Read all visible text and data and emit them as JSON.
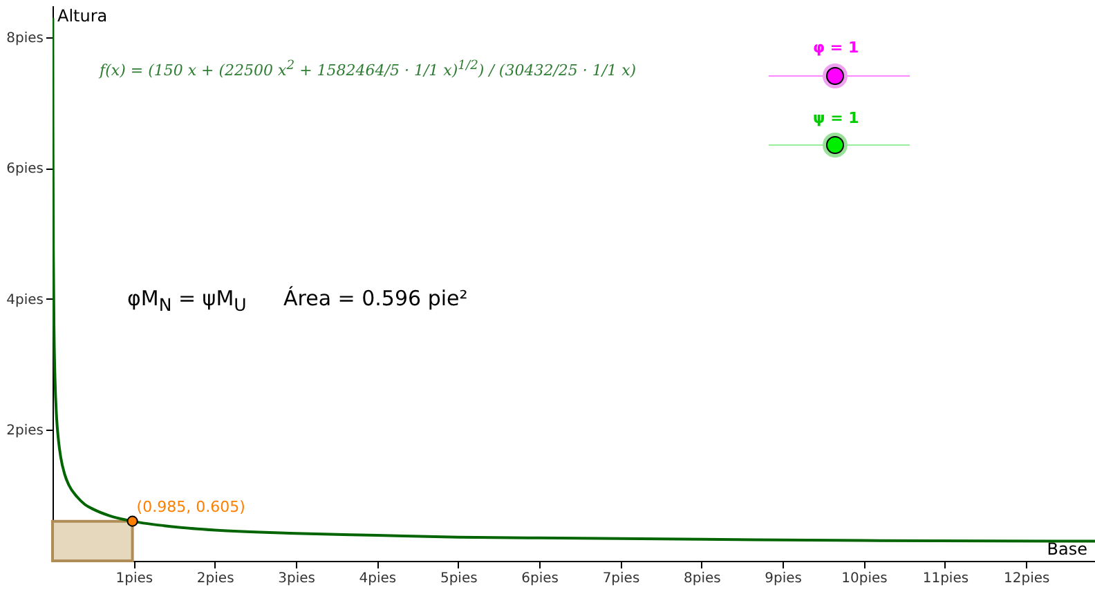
{
  "chart_data": {
    "type": "line",
    "xlabel": "Base",
    "ylabel": "Altura",
    "xlim": [
      0,
      12.85
    ],
    "ylim": [
      0,
      8.48
    ],
    "xticks": [
      {
        "value": 1,
        "label": "1pies"
      },
      {
        "value": 2,
        "label": "2pies"
      },
      {
        "value": 3,
        "label": "3pies"
      },
      {
        "value": 4,
        "label": "4pies"
      },
      {
        "value": 5,
        "label": "5pies"
      },
      {
        "value": 6,
        "label": "6pies"
      },
      {
        "value": 7,
        "label": "7pies"
      },
      {
        "value": 8,
        "label": "8pies"
      },
      {
        "value": 9,
        "label": "9pies"
      },
      {
        "value": 10,
        "label": "10pies"
      },
      {
        "value": 11,
        "label": "11pies"
      },
      {
        "value": 12,
        "label": "12pies"
      }
    ],
    "yticks": [
      {
        "value": 2,
        "label": "2pies"
      },
      {
        "value": 4,
        "label": "4pies"
      },
      {
        "value": 6,
        "label": "6pies"
      },
      {
        "value": 8,
        "label": "8pies"
      }
    ],
    "grid": false,
    "series": [
      {
        "type": "area",
        "color": "#e5d8bd",
        "x": [
          0,
          0.985
        ],
        "values": [
          0.605,
          0.605
        ]
      },
      {
        "color": "#006400",
        "x": [
          0.0032,
          0.005,
          0.01,
          0.02,
          0.03,
          0.05,
          0.075,
          0.1,
          0.15,
          0.2,
          0.3,
          0.4,
          0.5,
          0.7,
          0.985,
          1.5,
          2,
          3,
          4,
          5,
          6,
          8,
          10,
          12.85
        ],
        "values": [
          8.29,
          6.66,
          4.75,
          3.39,
          2.79,
          2.19,
          1.82,
          1.59,
          1.32,
          1.16,
          0.98,
          0.86,
          0.79,
          0.69,
          0.605,
          0.52,
          0.47,
          0.42,
          0.39,
          0.36,
          0.35,
          0.33,
          0.31,
          0.3
        ]
      },
      {
        "type": "scatter",
        "color": "#ff7f00",
        "x": [
          0.985
        ],
        "values": [
          0.605
        ]
      }
    ],
    "annotations": [
      {
        "text": "(0.985, 0.605)",
        "x": 0.985,
        "y": 0.605
      },
      "f(x) = (150 x + (22500 x$^{2}$ + 1582464/5 · 1/1 x)$^{1/2}$) / (30432/25 · 1/1 x)",
      "φM$_{N}$ = ψM$_{U}$",
      "Área = 0.596 pie²",
      "φ = 1",
      "ψ = 1"
    ]
  }
}
